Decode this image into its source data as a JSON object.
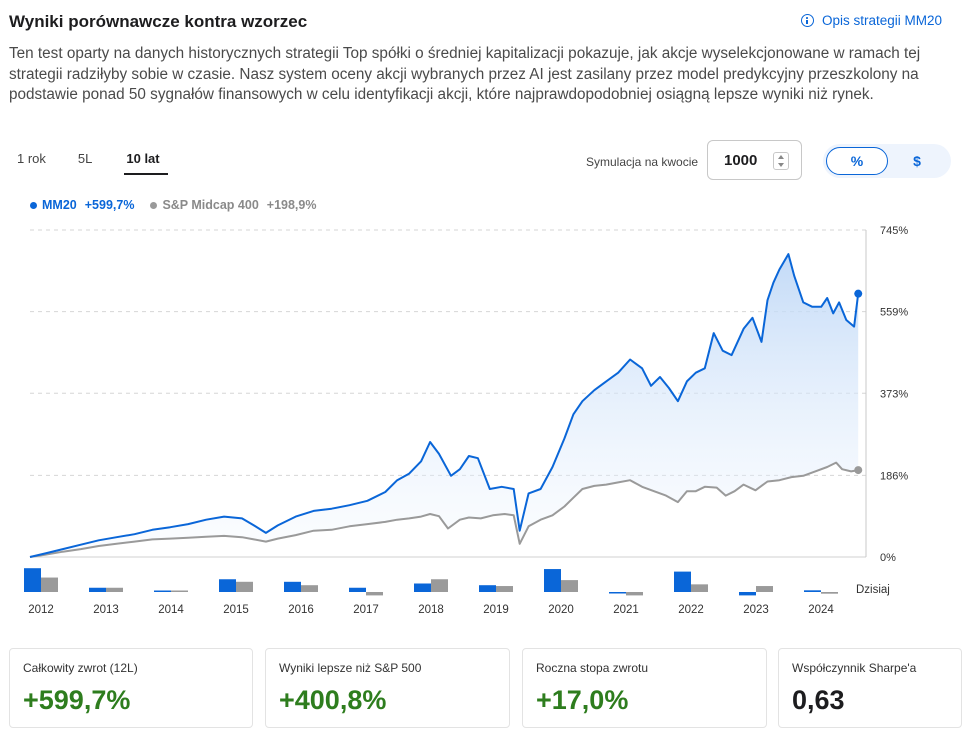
{
  "header": {
    "title": "Wyniki porównawcze kontra wzorzec",
    "strategy_link": "Opis strategii MM20",
    "description": "Ten test oparty na danych historycznych strategii Top spółki o średniej kapitalizacji pokazuje, jak akcje wyselekcjonowane w ramach tej strategii radziłyby sobie w czasie. Nasz system oceny akcji wybranych przez AI jest zasilany przez model predykcyjny przeszkolony na podstawie ponad 50 sygnałów finansowych w celu identyfikacji akcji, które najprawdopodobniej osiągną lepsze wyniki niż rynek."
  },
  "tabs": [
    {
      "label": "1 rok",
      "active": false
    },
    {
      "label": "5L",
      "active": false
    },
    {
      "label": "10 lat",
      "active": true
    }
  ],
  "simulation": {
    "label": "Symulacja na kwocie",
    "value": "1000"
  },
  "toggle": {
    "percent": "%",
    "dollar": "$",
    "selected": "%"
  },
  "legend": [
    {
      "name": "MM20",
      "value": "+599,7%",
      "color": "#0a66d8"
    },
    {
      "name": "S&P Midcap 400",
      "value": "+198,9%",
      "color": "#9a9a9a"
    }
  ],
  "chart_data": {
    "type": "line",
    "y_tick_labels": [
      "745%",
      "559%",
      "373%",
      "186%",
      "0%"
    ],
    "y_ticks": [
      745,
      559,
      373,
      186,
      0
    ],
    "ylim": [
      0,
      745
    ],
    "xlim": [
      2011.75,
      2025.75
    ],
    "series": [
      {
        "name": "MM20",
        "color": "#0a66d8",
        "points": [
          [
            2011.75,
            0
          ],
          [
            2012.0,
            8
          ],
          [
            2012.3,
            18
          ],
          [
            2012.6,
            28
          ],
          [
            2012.9,
            38
          ],
          [
            2013.2,
            45
          ],
          [
            2013.5,
            52
          ],
          [
            2013.8,
            62
          ],
          [
            2014.1,
            68
          ],
          [
            2014.4,
            75
          ],
          [
            2014.7,
            85
          ],
          [
            2015.0,
            92
          ],
          [
            2015.3,
            88
          ],
          [
            2015.5,
            72
          ],
          [
            2015.7,
            55
          ],
          [
            2015.9,
            72
          ],
          [
            2016.2,
            92
          ],
          [
            2016.5,
            105
          ],
          [
            2016.8,
            110
          ],
          [
            2017.1,
            118
          ],
          [
            2017.4,
            128
          ],
          [
            2017.7,
            148
          ],
          [
            2017.9,
            175
          ],
          [
            2018.1,
            190
          ],
          [
            2018.3,
            218
          ],
          [
            2018.45,
            262
          ],
          [
            2018.6,
            235
          ],
          [
            2018.8,
            185
          ],
          [
            2018.95,
            200
          ],
          [
            2019.1,
            230
          ],
          [
            2019.25,
            225
          ],
          [
            2019.45,
            155
          ],
          [
            2019.65,
            160
          ],
          [
            2019.85,
            155
          ],
          [
            2019.95,
            60
          ],
          [
            2020.1,
            145
          ],
          [
            2020.3,
            155
          ],
          [
            2020.5,
            205
          ],
          [
            2020.7,
            270
          ],
          [
            2020.85,
            325
          ],
          [
            2021.0,
            355
          ],
          [
            2021.2,
            380
          ],
          [
            2021.4,
            400
          ],
          [
            2021.6,
            420
          ],
          [
            2021.8,
            450
          ],
          [
            2022.0,
            430
          ],
          [
            2022.15,
            390
          ],
          [
            2022.3,
            410
          ],
          [
            2022.45,
            385
          ],
          [
            2022.6,
            355
          ],
          [
            2022.75,
            400
          ],
          [
            2022.9,
            420
          ],
          [
            2023.05,
            430
          ],
          [
            2023.2,
            510
          ],
          [
            2023.35,
            470
          ],
          [
            2023.5,
            460
          ],
          [
            2023.7,
            520
          ],
          [
            2023.85,
            545
          ],
          [
            2024.0,
            490
          ],
          [
            2024.1,
            585
          ],
          [
            2024.2,
            625
          ],
          [
            2024.3,
            655
          ],
          [
            2024.45,
            690
          ],
          [
            2024.55,
            640
          ],
          [
            2024.7,
            580
          ],
          [
            2024.85,
            570
          ],
          [
            2025.0,
            570
          ],
          [
            2025.1,
            590
          ],
          [
            2025.2,
            555
          ],
          [
            2025.3,
            580
          ],
          [
            2025.42,
            540
          ],
          [
            2025.55,
            525
          ],
          [
            2025.62,
            600
          ]
        ]
      },
      {
        "name": "S&P Midcap 400",
        "color": "#9a9a9a",
        "points": [
          [
            2011.75,
            0
          ],
          [
            2012.0,
            5
          ],
          [
            2012.3,
            12
          ],
          [
            2012.6,
            18
          ],
          [
            2012.9,
            25
          ],
          [
            2013.2,
            30
          ],
          [
            2013.5,
            35
          ],
          [
            2013.8,
            40
          ],
          [
            2014.1,
            42
          ],
          [
            2014.4,
            44
          ],
          [
            2014.7,
            46
          ],
          [
            2015.0,
            48
          ],
          [
            2015.3,
            45
          ],
          [
            2015.5,
            40
          ],
          [
            2015.7,
            35
          ],
          [
            2015.9,
            42
          ],
          [
            2016.2,
            50
          ],
          [
            2016.5,
            60
          ],
          [
            2016.8,
            62
          ],
          [
            2017.1,
            70
          ],
          [
            2017.4,
            75
          ],
          [
            2017.7,
            80
          ],
          [
            2017.9,
            85
          ],
          [
            2018.1,
            88
          ],
          [
            2018.3,
            92
          ],
          [
            2018.45,
            98
          ],
          [
            2018.6,
            93
          ],
          [
            2018.75,
            65
          ],
          [
            2018.95,
            85
          ],
          [
            2019.1,
            90
          ],
          [
            2019.3,
            88
          ],
          [
            2019.5,
            95
          ],
          [
            2019.7,
            98
          ],
          [
            2019.85,
            95
          ],
          [
            2019.95,
            30
          ],
          [
            2020.1,
            70
          ],
          [
            2020.3,
            85
          ],
          [
            2020.5,
            95
          ],
          [
            2020.7,
            115
          ],
          [
            2020.85,
            135
          ],
          [
            2021.0,
            155
          ],
          [
            2021.2,
            162
          ],
          [
            2021.4,
            165
          ],
          [
            2021.6,
            170
          ],
          [
            2021.8,
            175
          ],
          [
            2022.0,
            160
          ],
          [
            2022.2,
            150
          ],
          [
            2022.4,
            140
          ],
          [
            2022.6,
            125
          ],
          [
            2022.75,
            150
          ],
          [
            2022.9,
            150
          ],
          [
            2023.05,
            160
          ],
          [
            2023.25,
            158
          ],
          [
            2023.4,
            140
          ],
          [
            2023.55,
            150
          ],
          [
            2023.7,
            165
          ],
          [
            2023.9,
            152
          ],
          [
            2024.1,
            172
          ],
          [
            2024.3,
            175
          ],
          [
            2024.5,
            182
          ],
          [
            2024.7,
            185
          ],
          [
            2024.9,
            195
          ],
          [
            2025.1,
            205
          ],
          [
            2025.25,
            215
          ],
          [
            2025.35,
            200
          ],
          [
            2025.5,
            195
          ],
          [
            2025.62,
            198
          ]
        ]
      }
    ],
    "annual_bars": {
      "years": [
        "2012",
        "2013",
        "2014",
        "2015",
        "2016",
        "2017",
        "2018",
        "2019",
        "2020",
        "2021",
        "2022",
        "2023",
        "2024"
      ],
      "mm20": [
        28,
        5,
        0,
        15,
        12,
        5,
        10,
        8,
        27,
        -1,
        24,
        -4,
        2
      ],
      "benchmark": [
        17,
        5,
        0,
        12,
        8,
        -4,
        15,
        7,
        14,
        -4,
        9,
        7,
        -2
      ],
      "today_label": "Dzisiaj"
    }
  },
  "cards": [
    {
      "label": "Całkowity zwrot (12L)",
      "value": "+599,7%",
      "positive": true
    },
    {
      "label": "Wyniki lepsze niż S&P 500",
      "value": "+400,8%",
      "positive": true
    },
    {
      "label": "Roczna stopa zwrotu",
      "value": "+17,0%",
      "positive": true
    },
    {
      "label": "Współczynnik Sharpe'a",
      "value": "0,63",
      "positive": false
    }
  ]
}
